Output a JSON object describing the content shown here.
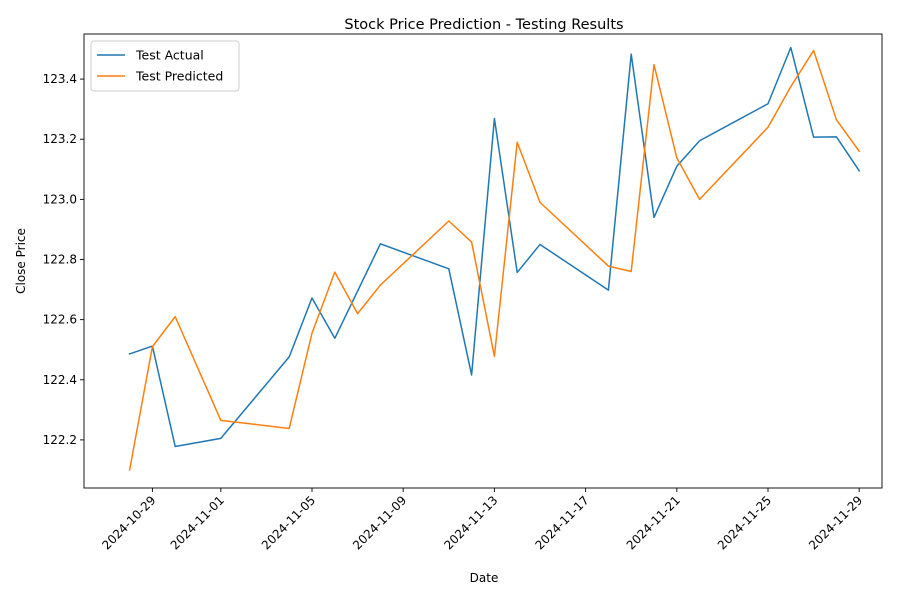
{
  "chart_data": {
    "type": "line",
    "title": "Stock Price Prediction - Testing Results",
    "xlabel": "Date",
    "ylabel": "Close Price",
    "x_ticks": [
      "2024-10-29",
      "2024-11-01",
      "2024-11-05",
      "2024-11-09",
      "2024-11-13",
      "2024-11-17",
      "2024-11-21",
      "2024-11-25",
      "2024-11-29"
    ],
    "y_ticks": [
      "122.2",
      "122.4",
      "122.6",
      "122.8",
      "123.0",
      "123.2",
      "123.4"
    ],
    "xlim": [
      "2024-10-26",
      "2024-11-30"
    ],
    "ylim": [
      122.04,
      123.55
    ],
    "grid": false,
    "legend_position": "top-left",
    "series": [
      {
        "name": "Test Actual",
        "color": "#1f77b4",
        "points": [
          [
            "2024-10-28",
            122.486
          ],
          [
            "2024-10-29",
            122.512
          ],
          [
            "2024-10-30",
            122.178
          ],
          [
            "2024-11-01",
            122.205
          ],
          [
            "2024-11-04",
            122.476
          ],
          [
            "2024-11-05",
            122.672
          ],
          [
            "2024-11-06",
            122.538
          ],
          [
            "2024-11-08",
            122.852
          ],
          [
            "2024-11-11",
            122.769
          ],
          [
            "2024-11-12",
            122.416
          ],
          [
            "2024-11-13",
            123.269
          ],
          [
            "2024-11-14",
            122.757
          ],
          [
            "2024-11-15",
            122.85
          ],
          [
            "2024-11-18",
            122.698
          ],
          [
            "2024-11-19",
            123.483
          ],
          [
            "2024-11-20",
            122.94
          ],
          [
            "2024-11-21",
            123.11
          ],
          [
            "2024-11-22",
            123.195
          ],
          [
            "2024-11-25",
            123.318
          ],
          [
            "2024-11-26",
            123.505
          ],
          [
            "2024-11-27",
            123.207
          ],
          [
            "2024-11-28",
            123.208
          ],
          [
            "2024-11-29",
            123.095
          ]
        ]
      },
      {
        "name": "Test Predicted",
        "color": "#ff7f0e",
        "points": [
          [
            "2024-10-28",
            122.1
          ],
          [
            "2024-10-29",
            122.51
          ],
          [
            "2024-10-30",
            122.61
          ],
          [
            "2024-11-01",
            122.265
          ],
          [
            "2024-11-04",
            122.238
          ],
          [
            "2024-11-05",
            122.555
          ],
          [
            "2024-11-06",
            122.758
          ],
          [
            "2024-11-07",
            122.62
          ],
          [
            "2024-11-08",
            122.715
          ],
          [
            "2024-11-11",
            122.928
          ],
          [
            "2024-11-12",
            122.858
          ],
          [
            "2024-11-13",
            122.478
          ],
          [
            "2024-11-14",
            123.19
          ],
          [
            "2024-11-15",
            122.99
          ],
          [
            "2024-11-18",
            122.778
          ],
          [
            "2024-11-19",
            122.76
          ],
          [
            "2024-11-20",
            123.448
          ],
          [
            "2024-11-21",
            123.138
          ],
          [
            "2024-11-22",
            123.0
          ],
          [
            "2024-11-25",
            123.24
          ],
          [
            "2024-11-26",
            123.375
          ],
          [
            "2024-11-27",
            123.495
          ],
          [
            "2024-11-28",
            123.265
          ],
          [
            "2024-11-29",
            123.16
          ]
        ]
      }
    ]
  }
}
